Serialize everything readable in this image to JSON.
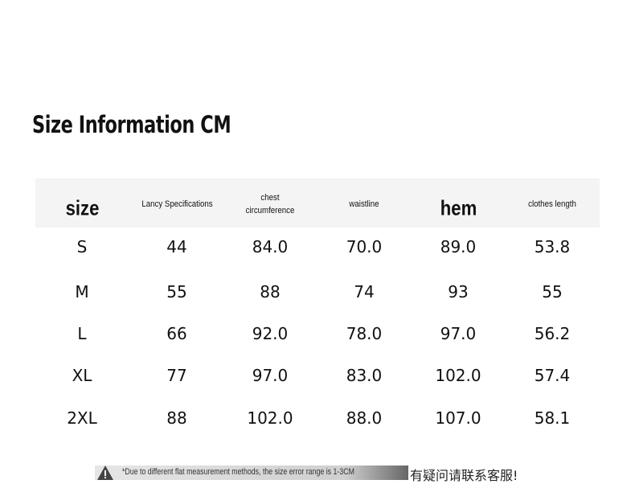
{
  "header": {
    "title": "Size Information CM"
  },
  "table": {
    "columns": [
      "size",
      "Lancy Specifications",
      "chest circumference",
      "waistline",
      "hem",
      "clothes length"
    ],
    "rows": [
      [
        "S",
        "44",
        "84.0",
        "70.0",
        "89.0",
        "53.8"
      ],
      [
        "M",
        "55",
        "88",
        "74",
        "93",
        "55"
      ],
      [
        "L",
        "66",
        "92.0",
        "78.0",
        "97.0",
        "56.2"
      ],
      [
        "XL",
        "77",
        "97.0",
        "83.0",
        "102.0",
        "57.4"
      ],
      [
        "2XL",
        "88",
        "102.0",
        "88.0",
        "107.0",
        "58.1"
      ]
    ]
  },
  "footer": {
    "note": "*Due to different flat measurement methods, the size error range is 1-3CM",
    "contact": "有疑问请联系客服!"
  }
}
